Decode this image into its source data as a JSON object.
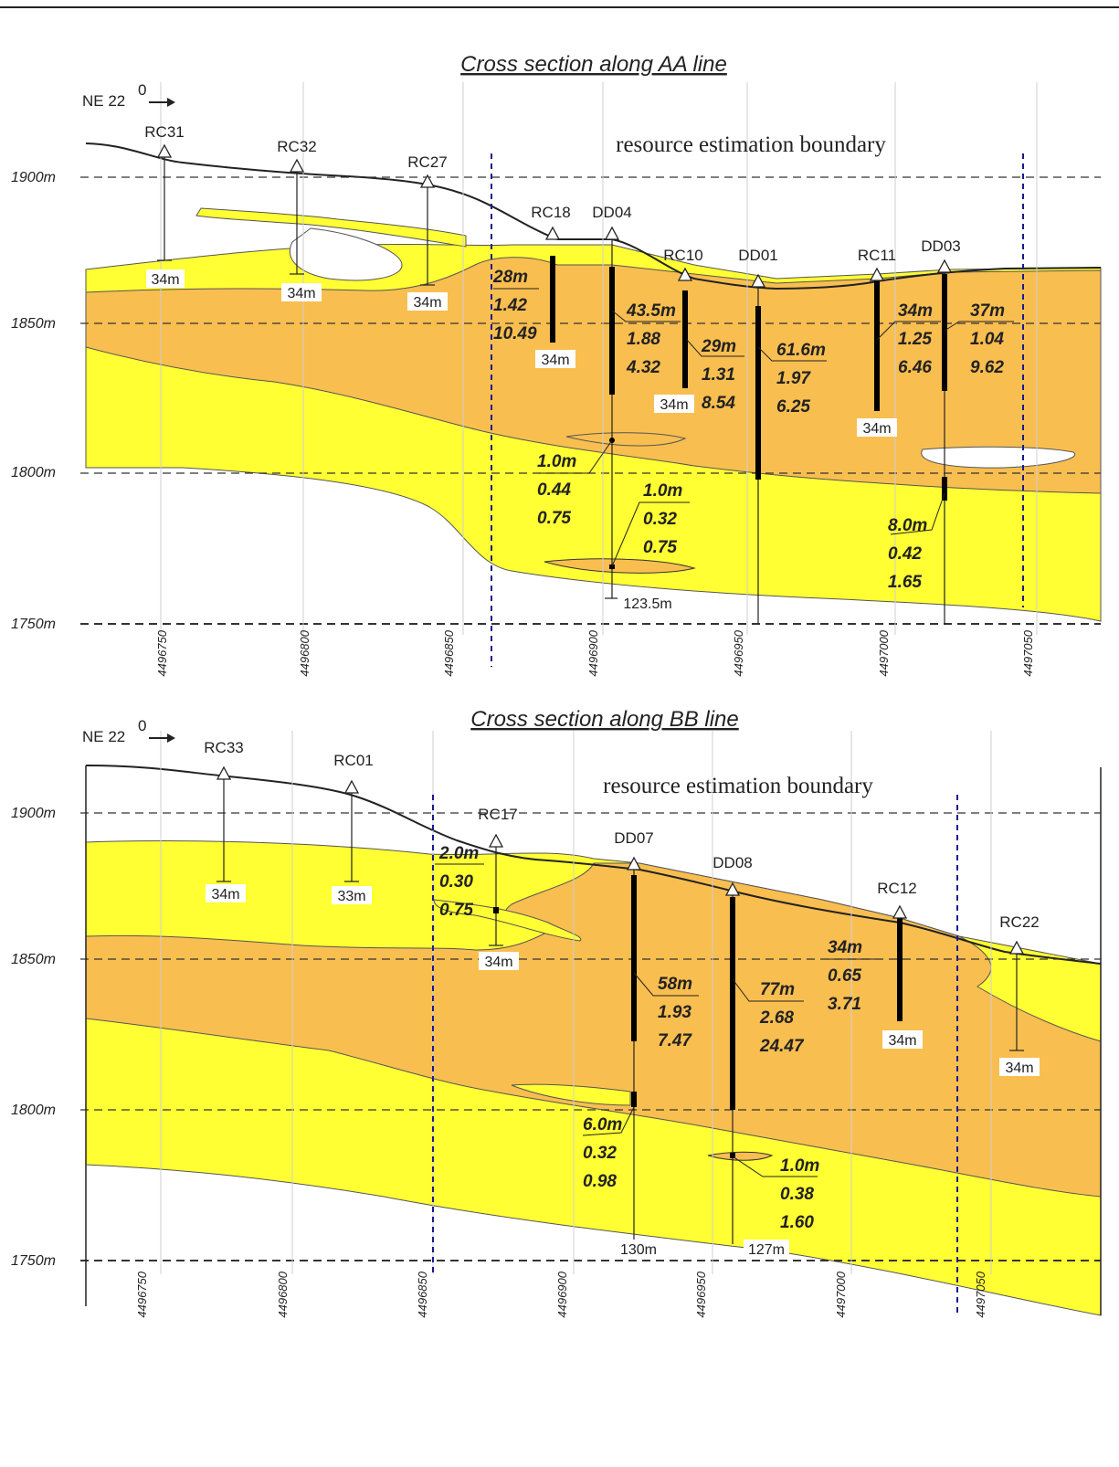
{
  "colors": {
    "ore_low": "#ffff33",
    "ore_high": "#f9be50",
    "boundary": "#1a1a8c"
  },
  "north_label": "NE 22",
  "north_sup": "0",
  "boundary_label": "resource estimation boundary",
  "sections": [
    {
      "title": "Cross section along AA line",
      "elevations": [
        "1900m",
        "1850m",
        "1800m",
        "1750m"
      ],
      "coords": [
        "4496750",
        "4496800",
        "4496850",
        "4496900",
        "4496950",
        "4497000",
        "4497050"
      ],
      "holes": [
        "RC31",
        "RC32",
        "RC27",
        "RC18",
        "DD04",
        "RC10",
        "DD01",
        "RC11",
        "DD03"
      ],
      "depths": [
        "34m",
        "34m",
        "34m",
        "34m",
        "34m",
        "34m",
        "123.5m"
      ],
      "intercepts": [
        [
          "28m",
          "1.42",
          "10.49"
        ],
        [
          "43.5m",
          "1.88",
          "4.32"
        ],
        [
          "29m",
          "1.31",
          "8.54"
        ],
        [
          "61.6m",
          "1.97",
          "6.25"
        ],
        [
          "34m",
          "1.25",
          "6.46"
        ],
        [
          "37m",
          "1.04",
          "9.62"
        ],
        [
          "1.0m",
          "0.44",
          "0.75"
        ],
        [
          "1.0m",
          "0.32",
          "0.75"
        ],
        [
          "8.0m",
          "0.42",
          "1.65"
        ]
      ]
    },
    {
      "title": "Cross section along BB line",
      "elevations": [
        "1900m",
        "1850m",
        "1800m",
        "1750m"
      ],
      "coords": [
        "4496750",
        "4496800",
        "4496850",
        "4496900",
        "4496950",
        "4497000",
        "4497050"
      ],
      "holes": [
        "RC33",
        "RC01",
        "RC17",
        "DD07",
        "DD08",
        "RC12",
        "RC22"
      ],
      "depths": [
        "34m",
        "33m",
        "34m",
        "34m",
        "34m",
        "130m",
        "127m"
      ],
      "intercepts": [
        [
          "2.0m",
          "0.30",
          "0.75"
        ],
        [
          "58m",
          "1.93",
          "7.47"
        ],
        [
          "77m",
          "2.68",
          "24.47"
        ],
        [
          "34m",
          "0.65",
          "3.71"
        ],
        [
          "6.0m",
          "0.32",
          "0.98"
        ],
        [
          "1.0m",
          "0.38",
          "1.60"
        ]
      ]
    }
  ]
}
